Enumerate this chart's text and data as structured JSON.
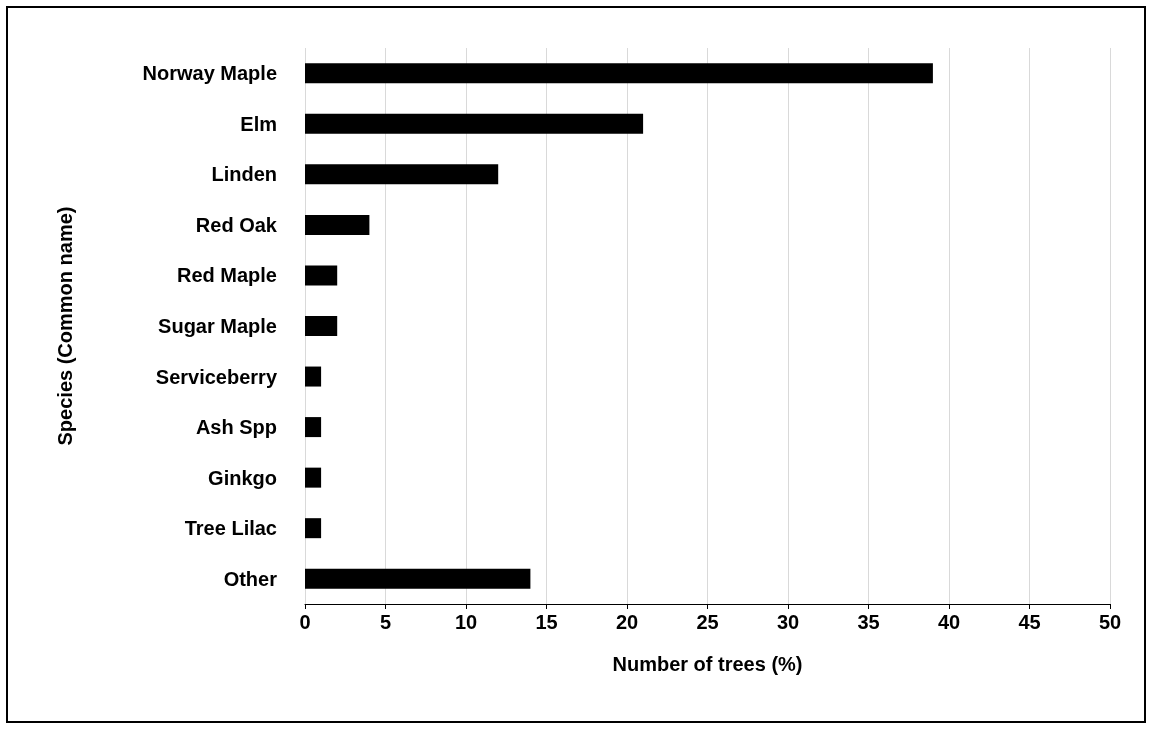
{
  "chart_data": {
    "type": "bar",
    "orientation": "horizontal",
    "xlabel": "Number of trees (%)",
    "ylabel": "Species (Common name)",
    "categories": [
      "Norway Maple",
      "Elm",
      "Linden",
      "Red Oak",
      "Red Maple",
      "Sugar Maple",
      "Serviceberry",
      "Ash Spp",
      "Ginkgo",
      "Tree Lilac",
      "Other"
    ],
    "values": [
      39,
      21,
      12,
      4,
      2,
      2,
      1,
      1,
      1,
      1,
      14
    ],
    "color": "#000000",
    "xlim": [
      0,
      50
    ],
    "xticks": [
      0,
      5,
      10,
      15,
      20,
      25,
      30,
      35,
      40,
      45,
      50
    ],
    "grid": "x"
  }
}
